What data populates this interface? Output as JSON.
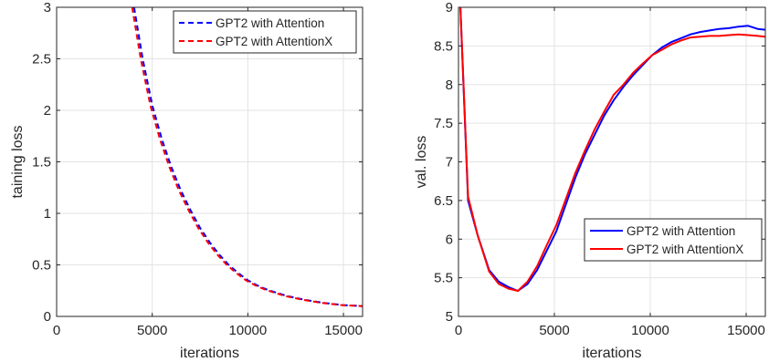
{
  "chart_data": [
    {
      "type": "line",
      "xlabel": "iterations",
      "ylabel": "taining loss",
      "xlim": [
        0,
        16000
      ],
      "ylim": [
        0,
        3
      ],
      "xticks": [
        0,
        5000,
        10000,
        15000
      ],
      "yticks": [
        0,
        0.5,
        1,
        1.5,
        2,
        2.5,
        3
      ],
      "xtick_labels": [
        "0",
        "5000",
        "10000",
        "15000"
      ],
      "ytick_labels": [
        "0",
        "0.5",
        "1",
        "1.5",
        "2",
        "2.5",
        "3"
      ],
      "grid": true,
      "legend_position": "top-right",
      "series": [
        {
          "name": "GPT2 with Attention",
          "color": "#0000ff",
          "dash": "dashed",
          "x": [
            4050,
            4500,
            5000,
            5500,
            6000,
            6500,
            7000,
            7500,
            8000,
            8500,
            9000,
            9500,
            10000,
            10500,
            11000,
            12000,
            13000,
            14000,
            15000,
            16000
          ],
          "y": [
            3.0,
            2.5,
            2.05,
            1.72,
            1.45,
            1.22,
            1.03,
            0.86,
            0.72,
            0.6,
            0.5,
            0.42,
            0.35,
            0.3,
            0.26,
            0.2,
            0.16,
            0.13,
            0.11,
            0.1
          ]
        },
        {
          "name": "GPT2 with AttentionX",
          "color": "#ff0000",
          "dash": "dashed",
          "x": [
            3950,
            4400,
            4900,
            5400,
            5900,
            6400,
            6900,
            7400,
            7900,
            8400,
            8900,
            9400,
            9900,
            10400,
            10900,
            11900,
            12900,
            13900,
            14900,
            16000
          ],
          "y": [
            3.0,
            2.5,
            2.05,
            1.72,
            1.45,
            1.22,
            1.03,
            0.86,
            0.72,
            0.6,
            0.5,
            0.42,
            0.35,
            0.3,
            0.26,
            0.2,
            0.16,
            0.13,
            0.11,
            0.1
          ]
        }
      ]
    },
    {
      "type": "line",
      "xlabel": "iterations",
      "ylabel": "val. loss",
      "xlim": [
        0,
        16000
      ],
      "ylim": [
        5,
        9
      ],
      "xticks": [
        0,
        5000,
        10000,
        15000
      ],
      "yticks": [
        5,
        5.5,
        6,
        6.5,
        7,
        7.5,
        8,
        8.5,
        9
      ],
      "xtick_labels": [
        "0",
        "5000",
        "10000",
        "15000"
      ],
      "ytick_labels": [
        "5",
        "5.5",
        "6",
        "6.5",
        "7",
        "7.5",
        "8",
        "8.5",
        "9"
      ],
      "grid": true,
      "legend_position": "lower-right",
      "series": [
        {
          "name": "GPT2 with Attention",
          "color": "#0000ff",
          "dash": "solid",
          "x": [
            100,
            500,
            1000,
            1600,
            2100,
            2600,
            3100,
            3600,
            4100,
            4600,
            5100,
            5600,
            6100,
            6600,
            7100,
            7600,
            8100,
            8600,
            9100,
            9600,
            10100,
            10600,
            11100,
            11600,
            12100,
            12600,
            13100,
            13600,
            14100,
            14600,
            15100,
            15600,
            16000
          ],
          "y": [
            9.0,
            6.5,
            6.05,
            5.6,
            5.45,
            5.38,
            5.33,
            5.42,
            5.6,
            5.85,
            6.1,
            6.45,
            6.8,
            7.1,
            7.35,
            7.6,
            7.8,
            7.97,
            8.12,
            8.25,
            8.38,
            8.48,
            8.55,
            8.6,
            8.65,
            8.68,
            8.7,
            8.72,
            8.73,
            8.75,
            8.76,
            8.72,
            8.71
          ]
        },
        {
          "name": "GPT2 with AttentionX",
          "color": "#ff0000",
          "dash": "solid",
          "x": [
            100,
            500,
            1000,
            1600,
            2100,
            2600,
            3100,
            3600,
            4100,
            4600,
            5100,
            5600,
            6100,
            6600,
            7100,
            7600,
            8100,
            8600,
            9100,
            9600,
            10100,
            10600,
            11100,
            11600,
            12100,
            12600,
            13100,
            13600,
            14100,
            14600,
            15100,
            15600,
            16000
          ],
          "y": [
            9.0,
            6.55,
            6.05,
            5.58,
            5.42,
            5.36,
            5.33,
            5.45,
            5.65,
            5.92,
            6.18,
            6.52,
            6.86,
            7.15,
            7.42,
            7.65,
            7.87,
            8.0,
            8.15,
            8.27,
            8.38,
            8.45,
            8.52,
            8.57,
            8.61,
            8.62,
            8.63,
            8.63,
            8.64,
            8.65,
            8.64,
            8.63,
            8.62
          ]
        }
      ]
    }
  ]
}
